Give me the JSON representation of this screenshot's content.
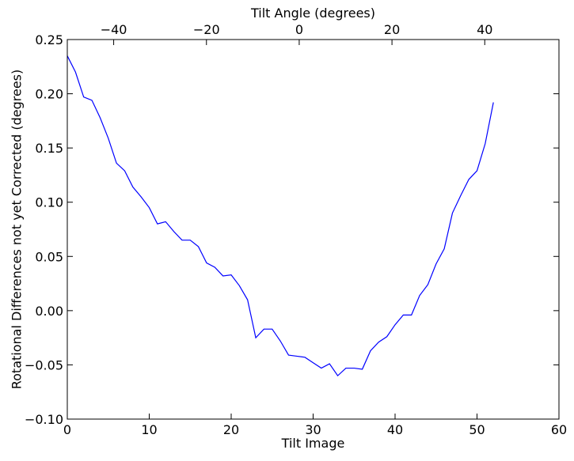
{
  "chart_data": {
    "type": "line",
    "title": "",
    "xlabel": "Tilt Image",
    "ylabel": "Rotational Differences not yet Corrected (degrees)",
    "top_xlabel": "Tilt Angle (degrees)",
    "xlim": [
      0,
      60
    ],
    "ylim": [
      -0.1,
      0.25
    ],
    "xticks": [
      0,
      10,
      20,
      30,
      40,
      50,
      60
    ],
    "xtick_labels": [
      "0",
      "10",
      "20",
      "30",
      "40",
      "50",
      "60"
    ],
    "yticks": [
      -0.1,
      -0.05,
      0.0,
      0.05,
      0.1,
      0.15,
      0.2,
      0.25
    ],
    "ytick_labels": [
      "−0.10",
      "−0.05",
      "0.00",
      "0.05",
      "0.10",
      "0.15",
      "0.20",
      "0.25"
    ],
    "top_xlim": [
      -50,
      56
    ],
    "top_xticks": [
      -40,
      -20,
      0,
      20,
      40
    ],
    "top_xtick_labels": [
      "−40",
      "−20",
      "0",
      "20",
      "40"
    ],
    "grid": false,
    "line_color": "#0000ff",
    "series": [
      {
        "x": [
          0,
          1,
          2,
          3,
          4,
          5,
          6,
          7,
          8,
          9,
          10,
          11,
          12,
          13,
          14,
          15,
          16,
          17,
          18,
          19,
          20,
          21,
          22,
          23,
          24,
          25,
          26,
          27,
          28,
          29,
          30,
          31,
          32,
          33,
          34,
          35,
          36,
          37,
          38,
          39,
          40,
          41,
          42,
          43,
          44,
          45,
          46,
          47,
          48,
          49,
          50,
          51,
          52
        ],
        "y": [
          0.235,
          0.22,
          0.197,
          0.194,
          0.178,
          0.159,
          0.136,
          0.129,
          0.114,
          0.105,
          0.095,
          0.08,
          0.082,
          0.073,
          0.065,
          0.065,
          0.059,
          0.044,
          0.04,
          0.032,
          0.033,
          0.023,
          0.01,
          -0.025,
          -0.017,
          -0.017,
          -0.028,
          -0.041,
          -0.042,
          -0.043,
          -0.048,
          -0.053,
          -0.049,
          -0.06,
          -0.053,
          -0.053,
          -0.054,
          -0.037,
          -0.029,
          -0.024,
          -0.013,
          -0.004,
          -0.004,
          0.014,
          0.024,
          0.043,
          0.057,
          0.09,
          0.106,
          0.121,
          0.129,
          0.154,
          0.192
        ]
      }
    ]
  }
}
